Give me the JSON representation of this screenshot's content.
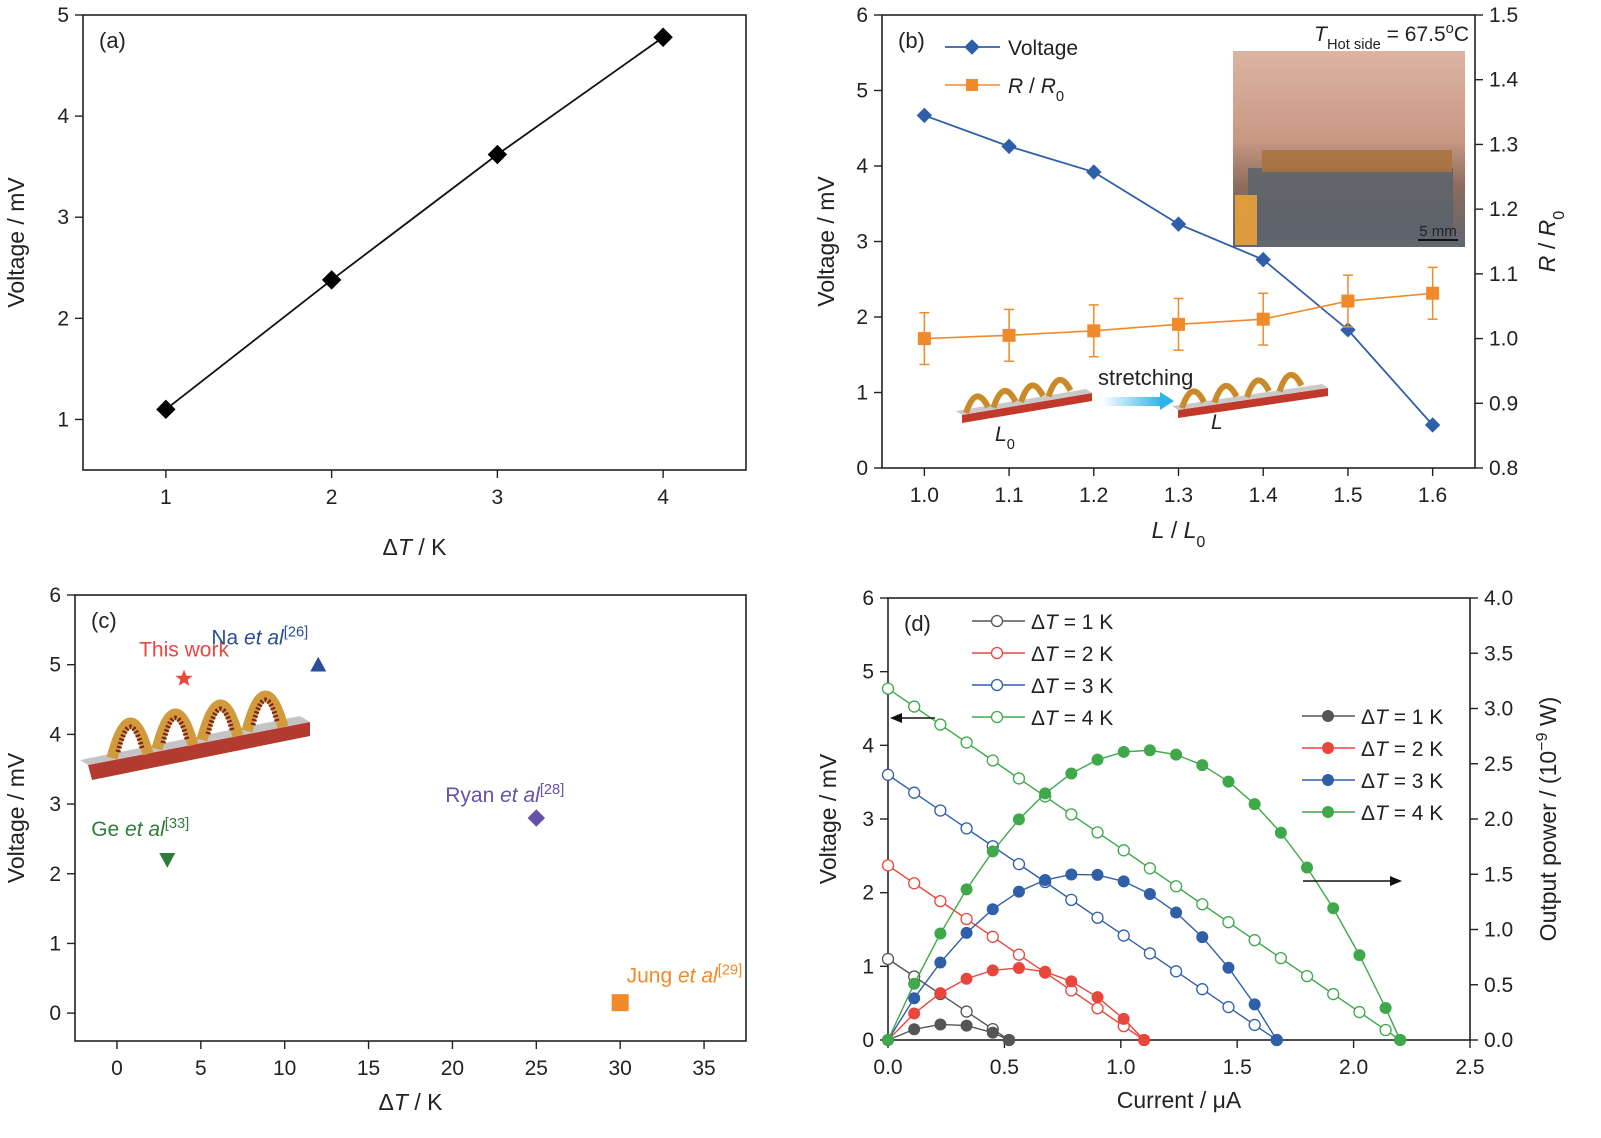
{
  "colors": {
    "axis": "#222222",
    "blue": "#2f5fa8",
    "orange": "#f08a2b",
    "red": "#e8473d",
    "green": "#3ea84a",
    "grey": "#555555",
    "purple": "#6651a8",
    "navy": "#2b4e9b",
    "darkgreen": "#2f7d3a",
    "inset_bg": "#d9b3a0"
  },
  "chart_data": [
    {
      "id": "a",
      "type": "line",
      "panel_label": "(a)",
      "xlabel": "ΔT / K",
      "ylabel": "Voltage / mV",
      "xlim": [
        0.5,
        4.5
      ],
      "ylim": [
        0.5,
        5
      ],
      "xticks": [
        1,
        2,
        3,
        4
      ],
      "yticks": [
        1,
        2,
        3,
        4,
        5
      ],
      "series": [
        {
          "marker": "diamond",
          "x": [
            1,
            2,
            3,
            4
          ],
          "y": [
            1.1,
            2.38,
            3.62,
            4.78
          ]
        }
      ]
    },
    {
      "id": "b",
      "type": "line",
      "panel_label": "(b)",
      "xlabel": "L / L0",
      "ylabel": "Voltage / mV",
      "y2label": "R / R0",
      "xlim": [
        0.95,
        1.65
      ],
      "ylim": [
        0,
        6
      ],
      "y2lim": [
        0.8,
        1.5
      ],
      "xticks": [
        1.0,
        1.1,
        1.2,
        1.3,
        1.4,
        1.5,
        1.6
      ],
      "yticks": [
        0,
        1,
        2,
        3,
        4,
        5,
        6
      ],
      "y2ticks": [
        0.8,
        0.9,
        1.0,
        1.1,
        1.2,
        1.3,
        1.4,
        1.5
      ],
      "annotation": "THot side = 67.5oC",
      "inset_scale": "5 mm",
      "stretch_text": "stretching",
      "stretch_before": "L0",
      "stretch_after": "L",
      "series": [
        {
          "name": "Voltage",
          "axis": "left",
          "marker": "diamond",
          "x": [
            1.0,
            1.1,
            1.2,
            1.3,
            1.4,
            1.5,
            1.6
          ],
          "y": [
            4.67,
            4.26,
            3.92,
            3.23,
            2.76,
            1.83,
            0.57
          ]
        },
        {
          "name": "R / R0",
          "axis": "right",
          "marker": "square",
          "x": [
            1.0,
            1.1,
            1.2,
            1.3,
            1.4,
            1.5,
            1.6
          ],
          "y": [
            1.0,
            1.005,
            1.012,
            1.022,
            1.03,
            1.058,
            1.07
          ],
          "err": [
            0.04,
            0.04,
            0.04,
            0.04,
            0.04,
            0.04,
            0.04
          ]
        }
      ]
    },
    {
      "id": "c",
      "type": "scatter",
      "panel_label": "(c)",
      "xlabel": "ΔT / K",
      "ylabel": "Voltage / mV",
      "xlim": [
        -2.5,
        37.5
      ],
      "ylim": [
        -0.4,
        6
      ],
      "xticks": [
        0,
        5,
        10,
        15,
        20,
        25,
        30,
        35
      ],
      "yticks": [
        0,
        1,
        2,
        3,
        4,
        5,
        6
      ],
      "points": [
        {
          "label": "This work",
          "x": 4,
          "y": 4.8,
          "marker": "star"
        },
        {
          "label": "Na et al[26]",
          "x": 12,
          "y": 5.0,
          "marker": "triangle-up"
        },
        {
          "label": "Ryan et al[28]",
          "x": 25,
          "y": 2.8,
          "marker": "diamond"
        },
        {
          "label": "Ge et al[33]",
          "x": 3,
          "y": 2.2,
          "marker": "triangle-down"
        },
        {
          "label": "Jung et al[29]",
          "x": 30,
          "y": 0.15,
          "marker": "square"
        }
      ]
    },
    {
      "id": "d",
      "type": "line",
      "panel_label": "(d)",
      "xlabel": "Current / μA",
      "ylabel": "Voltage / mV",
      "y2label": "Output power / (10-9 W)",
      "xlim": [
        0,
        2.5
      ],
      "ylim": [
        0,
        6
      ],
      "y2lim": [
        0,
        4.0
      ],
      "xticks": [
        0.0,
        0.5,
        1.0,
        1.5,
        2.0,
        2.5
      ],
      "yticks": [
        0,
        1,
        2,
        3,
        4,
        5,
        6
      ],
      "y2ticks": [
        0.0,
        0.5,
        1.0,
        1.5,
        2.0,
        2.5,
        3.0,
        3.5,
        4.0
      ],
      "voltage_series": [
        {
          "name": "ΔT = 1 K",
          "voc": 1.1,
          "isc": 0.52,
          "marker": "open-circle"
        },
        {
          "name": "ΔT = 2 K",
          "voc": 2.37,
          "isc": 1.1,
          "marker": "open-circle"
        },
        {
          "name": "ΔT = 3 K",
          "voc": 3.6,
          "isc": 1.67,
          "marker": "open-circle"
        },
        {
          "name": "ΔT = 4 K",
          "voc": 4.77,
          "isc": 2.2,
          "marker": "open-circle"
        }
      ],
      "power_series": [
        {
          "name": "ΔT = 1 K",
          "voc": 1.1,
          "isc": 0.52,
          "marker": "filled-circle"
        },
        {
          "name": "ΔT = 2 K",
          "voc": 2.37,
          "isc": 1.1,
          "marker": "filled-circle"
        },
        {
          "name": "ΔT = 3 K",
          "voc": 3.6,
          "isc": 1.67,
          "marker": "filled-circle"
        },
        {
          "name": "ΔT = 4 K",
          "voc": 4.77,
          "isc": 2.2,
          "marker": "filled-circle"
        }
      ]
    }
  ]
}
